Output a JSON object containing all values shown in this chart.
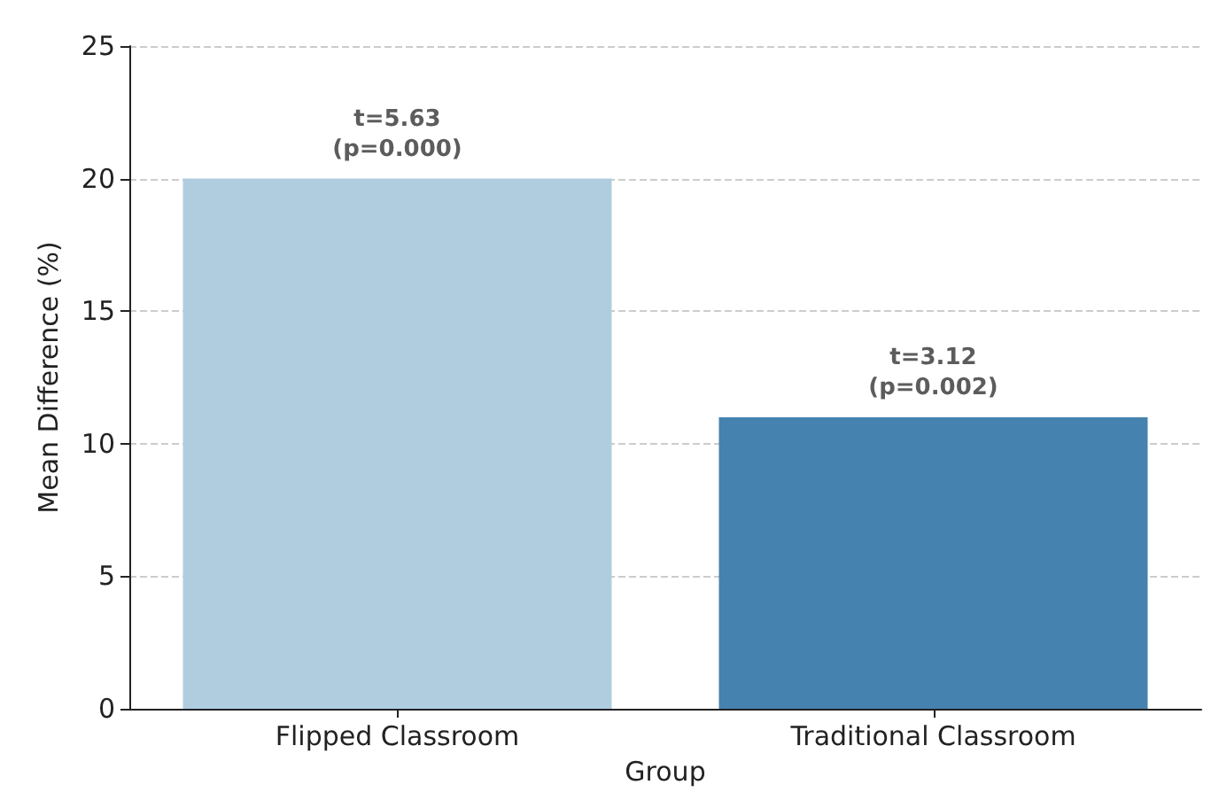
{
  "chart_data": {
    "type": "bar",
    "xlabel": "Group",
    "ylabel": "Mean Difference (%)",
    "categories": [
      "Flipped Classroom",
      "Traditional Classroom"
    ],
    "values": [
      20,
      11
    ],
    "colors": [
      "#b0cde0",
      "#4682b0"
    ],
    "ylim": [
      0,
      25
    ],
    "yticks": [
      0,
      5,
      10,
      15,
      20,
      25
    ],
    "grid": "y",
    "annotations": [
      {
        "text": "t=5.63\n(p=0.000)",
        "x": "Flipped Classroom",
        "y": 20
      },
      {
        "text": "t=3.12\n(p=0.002)",
        "x": "Traditional Classroom",
        "y": 11
      }
    ]
  }
}
